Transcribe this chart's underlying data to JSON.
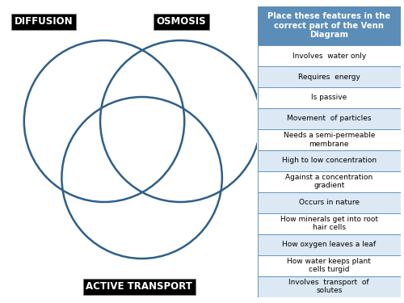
{
  "circle_color": "#2E5F8A",
  "circle_linewidth": 1.8,
  "bg_color": "#ffffff",
  "label_bg": "#000000",
  "label_fg": "#ffffff",
  "label_fontsize": 8.5,
  "labels": [
    "DIFFUSION",
    "OSMOSIS",
    "ACTIVE TRANSPORT"
  ],
  "table_header": "Place these features in the\ncorrect part of the Venn\nDiagram",
  "table_header_color": "#5B8DB8",
  "table_header_fontsize": 7.2,
  "table_row_color1": "#ffffff",
  "table_row_color2": "#dce9f5",
  "table_border_color": "#5B8DB8",
  "table_items": [
    "Involves  water only",
    "Requires  energy",
    "Is passive",
    "Movement  of particles",
    "Needs a semi-permeable\nmembrane",
    "High to low concentration",
    "Against a concentration\ngradient",
    "Occurs in nature",
    "How minerals get into root\nhair cells",
    "How oxygen leaves a leaf",
    "How water keeps plant\ncells turgid",
    "Involves  transport  of\nsolutes"
  ]
}
